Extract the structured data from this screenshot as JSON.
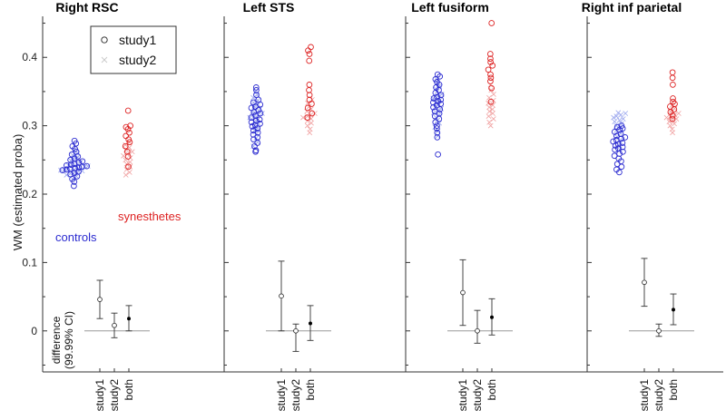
{
  "chart_data": {
    "type": "scatter",
    "ylabel": "WM (estimated proba)",
    "yticks": [
      "0",
      "0.1",
      "0.2",
      "0.3",
      "0.4"
    ],
    "ylim": [
      -0.06,
      0.46
    ],
    "diff_axis_label_line1": "difference",
    "diff_axis_label_line2": "(99.99% CI)",
    "group_labels": {
      "controls": "controls",
      "synesthetes": "synesthetes"
    },
    "legend": {
      "series": [
        "study1",
        "study2"
      ],
      "position": "top-left of first panel"
    },
    "diff_xticks": [
      "study1",
      "study2",
      "both"
    ],
    "colors": {
      "controls": "#2b2bd0",
      "synesthetes": "#dd2222",
      "controls_study2": "#9aa6ee",
      "synesthetes_study2": "#f0a0a0",
      "axis": "#333333"
    },
    "panels": [
      {
        "title": "Right RSC",
        "controls_study1": [
          0.212,
          0.218,
          0.222,
          0.226,
          0.229,
          0.231,
          0.233,
          0.235,
          0.236,
          0.237,
          0.238,
          0.239,
          0.24,
          0.241,
          0.242,
          0.243,
          0.244,
          0.246,
          0.248,
          0.25,
          0.252,
          0.255,
          0.258,
          0.262,
          0.266,
          0.27,
          0.274,
          0.278
        ],
        "controls_study2": [
          0.222,
          0.226,
          0.228,
          0.23,
          0.232,
          0.233,
          0.234,
          0.235,
          0.236,
          0.237,
          0.238,
          0.239,
          0.24,
          0.24,
          0.241,
          0.242,
          0.243,
          0.245,
          0.247,
          0.249,
          0.251,
          0.254,
          0.257,
          0.26,
          0.264
        ],
        "synesthetes_study1": [
          0.24,
          0.255,
          0.262,
          0.27,
          0.276,
          0.28,
          0.285,
          0.29,
          0.295,
          0.298,
          0.3,
          0.322
        ],
        "synesthetes_study2": [
          0.228,
          0.232,
          0.236,
          0.24,
          0.244,
          0.247,
          0.25,
          0.253,
          0.256,
          0.259,
          0.262,
          0.265,
          0.268,
          0.272,
          0.276
        ],
        "diffs": [
          {
            "label": "study1",
            "mean": 0.046,
            "lo": 0.018,
            "hi": 0.074
          },
          {
            "label": "study2",
            "mean": 0.008,
            "lo": -0.01,
            "hi": 0.026
          },
          {
            "label": "both",
            "mean": 0.018,
            "lo": 0.0,
            "hi": 0.037
          }
        ]
      },
      {
        "title": "Left STS",
        "controls_study1": [
          0.262,
          0.264,
          0.27,
          0.275,
          0.28,
          0.283,
          0.287,
          0.29,
          0.293,
          0.296,
          0.299,
          0.301,
          0.303,
          0.305,
          0.307,
          0.309,
          0.312,
          0.315,
          0.318,
          0.32,
          0.323,
          0.326,
          0.328,
          0.331,
          0.334,
          0.338,
          0.345,
          0.352,
          0.356
        ],
        "controls_study2": [
          0.27,
          0.276,
          0.282,
          0.288,
          0.293,
          0.297,
          0.3,
          0.303,
          0.306,
          0.309,
          0.312,
          0.314,
          0.316,
          0.318,
          0.32,
          0.322,
          0.325,
          0.328,
          0.331,
          0.334,
          0.337,
          0.341,
          0.345,
          0.35
        ],
        "synesthetes_study1": [
          0.312,
          0.318,
          0.326,
          0.332,
          0.338,
          0.345,
          0.352,
          0.36,
          0.395,
          0.405,
          0.41,
          0.415
        ],
        "synesthetes_study2": [
          0.29,
          0.295,
          0.3,
          0.304,
          0.307,
          0.31,
          0.312,
          0.314,
          0.316,
          0.318,
          0.321,
          0.324,
          0.328,
          0.333,
          0.338
        ],
        "diffs": [
          {
            "label": "study1",
            "mean": 0.051,
            "lo": 0.0,
            "hi": 0.102
          },
          {
            "label": "study2",
            "mean": 0.0,
            "lo": -0.03,
            "hi": 0.01
          },
          {
            "label": "both",
            "mean": 0.011,
            "lo": -0.014,
            "hi": 0.037
          }
        ]
      },
      {
        "title": "Left fusiform",
        "controls_study1": [
          0.258,
          0.283,
          0.29,
          0.296,
          0.3,
          0.305,
          0.31,
          0.314,
          0.318,
          0.321,
          0.324,
          0.327,
          0.33,
          0.332,
          0.334,
          0.336,
          0.338,
          0.34,
          0.342,
          0.345,
          0.348,
          0.352,
          0.356,
          0.36,
          0.364,
          0.368,
          0.372,
          0.375
        ],
        "controls_study2": [
          0.285,
          0.292,
          0.298,
          0.304,
          0.308,
          0.312,
          0.316,
          0.319,
          0.322,
          0.325,
          0.328,
          0.331,
          0.334,
          0.337,
          0.34,
          0.343,
          0.346,
          0.35,
          0.354,
          0.358,
          0.363,
          0.368
        ],
        "synesthetes_study1": [
          0.335,
          0.355,
          0.365,
          0.37,
          0.375,
          0.382,
          0.388,
          0.393,
          0.398,
          0.405,
          0.45
        ],
        "synesthetes_study2": [
          0.3,
          0.305,
          0.31,
          0.314,
          0.318,
          0.321,
          0.324,
          0.327,
          0.33,
          0.333,
          0.337,
          0.341,
          0.346,
          0.352,
          0.36
        ],
        "diffs": [
          {
            "label": "study1",
            "mean": 0.056,
            "lo": 0.008,
            "hi": 0.104
          },
          {
            "label": "study2",
            "mean": 0.0,
            "lo": -0.018,
            "hi": 0.03
          },
          {
            "label": "both",
            "mean": 0.02,
            "lo": -0.006,
            "hi": 0.047
          }
        ]
      },
      {
        "title": "Right inf parietal",
        "controls_study1": [
          0.232,
          0.236,
          0.24,
          0.244,
          0.248,
          0.252,
          0.256,
          0.259,
          0.262,
          0.265,
          0.267,
          0.269,
          0.271,
          0.273,
          0.275,
          0.277,
          0.279,
          0.281,
          0.283,
          0.285,
          0.288,
          0.291,
          0.294,
          0.296,
          0.298,
          0.3
        ],
        "controls_study2": [
          0.265,
          0.272,
          0.278,
          0.284,
          0.289,
          0.293,
          0.297,
          0.3,
          0.303,
          0.306,
          0.308,
          0.31,
          0.312,
          0.314,
          0.316,
          0.318,
          0.319
        ],
        "synesthetes_study1": [
          0.31,
          0.315,
          0.32,
          0.324,
          0.328,
          0.332,
          0.335,
          0.34,
          0.36,
          0.37,
          0.378
        ],
        "synesthetes_study2": [
          0.29,
          0.295,
          0.3,
          0.303,
          0.306,
          0.308,
          0.31,
          0.312,
          0.314,
          0.316,
          0.318,
          0.321,
          0.325,
          0.33
        ],
        "diffs": [
          {
            "label": "study1",
            "mean": 0.071,
            "lo": 0.036,
            "hi": 0.106
          },
          {
            "label": "study2",
            "mean": 0.0,
            "lo": -0.008,
            "hi": 0.01
          },
          {
            "label": "both",
            "mean": 0.031,
            "lo": 0.009,
            "hi": 0.054
          }
        ]
      }
    ]
  }
}
